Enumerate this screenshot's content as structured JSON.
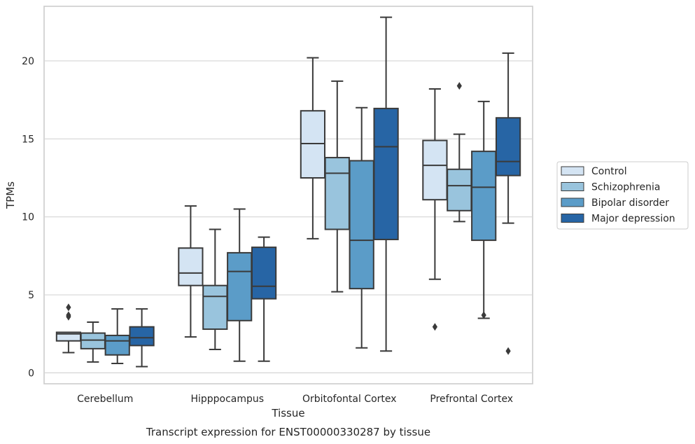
{
  "chart_data": {
    "type": "boxplot",
    "title": "",
    "caption": "Transcript expression for ENST00000330287 by tissue",
    "xlabel": "Tissue",
    "ylabel": "TPMs",
    "ylim": [
      -0.7,
      23.5
    ],
    "yticks": [
      0,
      5,
      10,
      15,
      20
    ],
    "grid": "horizontal",
    "legend_position": "right",
    "categories": [
      "Cerebellum",
      "Hipppocampus",
      "Orbitofontal Cortex",
      "Prefrontal Cortex"
    ],
    "series": [
      {
        "name": "Control",
        "color": "#d4e4f3",
        "boxes": [
          {
            "whisker_low": 1.3,
            "q1": 2.05,
            "median": 2.5,
            "q3": 2.6,
            "whisker_high": 2.6,
            "outliers": [
              4.2,
              3.7,
              3.6
            ]
          },
          {
            "whisker_low": 2.3,
            "q1": 5.6,
            "median": 6.4,
            "q3": 8.0,
            "whisker_high": 10.7,
            "outliers": []
          },
          {
            "whisker_low": 8.6,
            "q1": 12.5,
            "median": 14.7,
            "q3": 16.8,
            "whisker_high": 20.2,
            "outliers": []
          },
          {
            "whisker_low": 6.0,
            "q1": 11.1,
            "median": 13.3,
            "q3": 14.9,
            "whisker_high": 18.2,
            "outliers": [
              2.95
            ]
          }
        ]
      },
      {
        "name": "Schizophrenia",
        "color": "#99c4dd",
        "boxes": [
          {
            "whisker_low": 0.7,
            "q1": 1.55,
            "median": 2.1,
            "q3": 2.55,
            "whisker_high": 3.25,
            "outliers": []
          },
          {
            "whisker_low": 1.5,
            "q1": 2.8,
            "median": 4.9,
            "q3": 5.6,
            "whisker_high": 9.2,
            "outliers": []
          },
          {
            "whisker_low": 5.2,
            "q1": 9.2,
            "median": 12.8,
            "q3": 13.8,
            "whisker_high": 18.7,
            "outliers": []
          },
          {
            "whisker_low": 9.7,
            "q1": 10.4,
            "median": 12.0,
            "q3": 13.05,
            "whisker_high": 15.3,
            "outliers": [
              18.4
            ]
          }
        ]
      },
      {
        "name": "Bipolar disorder",
        "color": "#5b9cc8",
        "boxes": [
          {
            "whisker_low": 0.6,
            "q1": 1.15,
            "median": 2.05,
            "q3": 2.4,
            "whisker_high": 4.1,
            "outliers": []
          },
          {
            "whisker_low": 0.75,
            "q1": 3.35,
            "median": 6.5,
            "q3": 7.7,
            "whisker_high": 10.5,
            "outliers": []
          },
          {
            "whisker_low": 1.6,
            "q1": 5.4,
            "median": 8.5,
            "q3": 13.6,
            "whisker_high": 17.0,
            "outliers": []
          },
          {
            "whisker_low": 3.5,
            "q1": 8.5,
            "median": 11.9,
            "q3": 14.2,
            "whisker_high": 17.4,
            "outliers": [
              3.7
            ]
          }
        ]
      },
      {
        "name": "Major depression",
        "color": "#2765a5",
        "boxes": [
          {
            "whisker_low": 0.4,
            "q1": 1.75,
            "median": 2.25,
            "q3": 2.95,
            "whisker_high": 4.1,
            "outliers": []
          },
          {
            "whisker_low": 0.75,
            "q1": 4.75,
            "median": 5.55,
            "q3": 8.05,
            "whisker_high": 8.7,
            "outliers": []
          },
          {
            "whisker_low": 1.4,
            "q1": 8.55,
            "median": 14.5,
            "q3": 16.95,
            "whisker_high": 22.8,
            "outliers": []
          },
          {
            "whisker_low": 9.6,
            "q1": 12.65,
            "median": 13.55,
            "q3": 16.35,
            "whisker_high": 20.5,
            "outliers": [
              1.4
            ]
          }
        ]
      }
    ]
  }
}
